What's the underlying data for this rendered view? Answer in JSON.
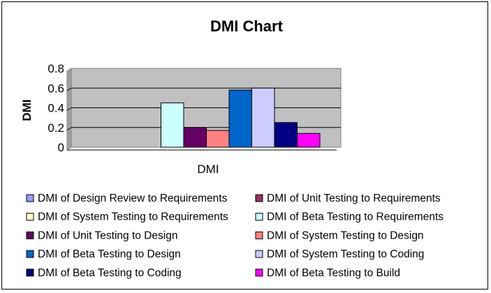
{
  "chart_data": {
    "type": "bar",
    "title": "DMI Chart",
    "xlabel": "",
    "ylabel": "DMI",
    "categories": [
      "DMI"
    ],
    "ylim": [
      0,
      0.8
    ],
    "yticks": [
      "0",
      "0.2",
      "0.4",
      "0.6",
      "0.8"
    ],
    "grid": true,
    "legend_position": "bottom",
    "plot_background": "#c0c0c0",
    "series": [
      {
        "name": "DMI of Design Review to Requirements",
        "values": [
          0
        ],
        "color": "#9999ff"
      },
      {
        "name": "DMI of Unit Testing to Requirements",
        "values": [
          0
        ],
        "color": "#993366"
      },
      {
        "name": "DMI of System Testing to Requirements",
        "values": [
          0
        ],
        "color": "#ffffcc"
      },
      {
        "name": "DMI of Beta Testing to Requirements",
        "values": [
          0.45
        ],
        "color": "#ccffff"
      },
      {
        "name": "DMI of Unit Testing to Design",
        "values": [
          0.2
        ],
        "color": "#660066"
      },
      {
        "name": "DMI of System Testing to Design",
        "values": [
          0.17
        ],
        "color": "#ff8080"
      },
      {
        "name": "DMI of Beta Testing to Design",
        "values": [
          0.58
        ],
        "color": "#0066cc"
      },
      {
        "name": "DMI of System Testing to Coding",
        "values": [
          0.6
        ],
        "color": "#ccccff"
      },
      {
        "name": "DMI of Beta Testing to Coding",
        "values": [
          0.25
        ],
        "color": "#000080"
      },
      {
        "name": "DMI of Beta Testing to Build",
        "values": [
          0.14
        ],
        "color": "#ff00ff"
      }
    ]
  }
}
